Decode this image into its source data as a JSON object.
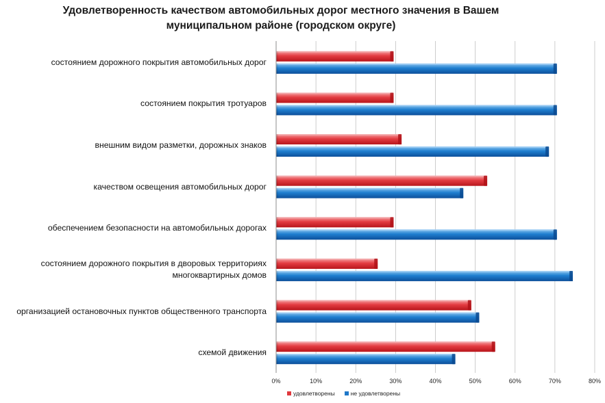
{
  "chart_data": {
    "type": "bar",
    "orientation": "horizontal",
    "title_lines": [
      "Удовлетворенность качеством автомобильных дорог местного значения в Вашем",
      "муниципальном районе (городском округе)"
    ],
    "categories": [
      [
        "состоянием дорожного покрытия автомобильных дорог"
      ],
      [
        "состоянием покрытия тротуаров"
      ],
      [
        "внешним видом разметки, дорожных знаков"
      ],
      [
        "качеством освещения автомобильных дорог"
      ],
      [
        "обеспечением безопасности на автомобильных дорогах"
      ],
      [
        "состоянием дорожного покрытия в дворовых территориях",
        "многоквартирных домов"
      ],
      [
        "организацией остановочных пунктов общественного транспорта"
      ],
      [
        "схемой движения"
      ]
    ],
    "series": [
      {
        "name": "удовлетворены",
        "color": "#e0393e",
        "values": [
          29.5,
          29.5,
          31.5,
          53,
          29.5,
          25.5,
          49,
          55
        ]
      },
      {
        "name": "не удовлетворены",
        "color": "#1f78c9",
        "values": [
          70.5,
          70.5,
          68.5,
          47,
          70.5,
          74.5,
          51,
          45
        ]
      }
    ],
    "xlim": [
      0,
      80
    ],
    "ticks": [
      "0%",
      "10%",
      "20%",
      "30%",
      "40%",
      "50%",
      "60%",
      "70%",
      "80%"
    ],
    "grid": true,
    "legend_position": "bottom"
  }
}
